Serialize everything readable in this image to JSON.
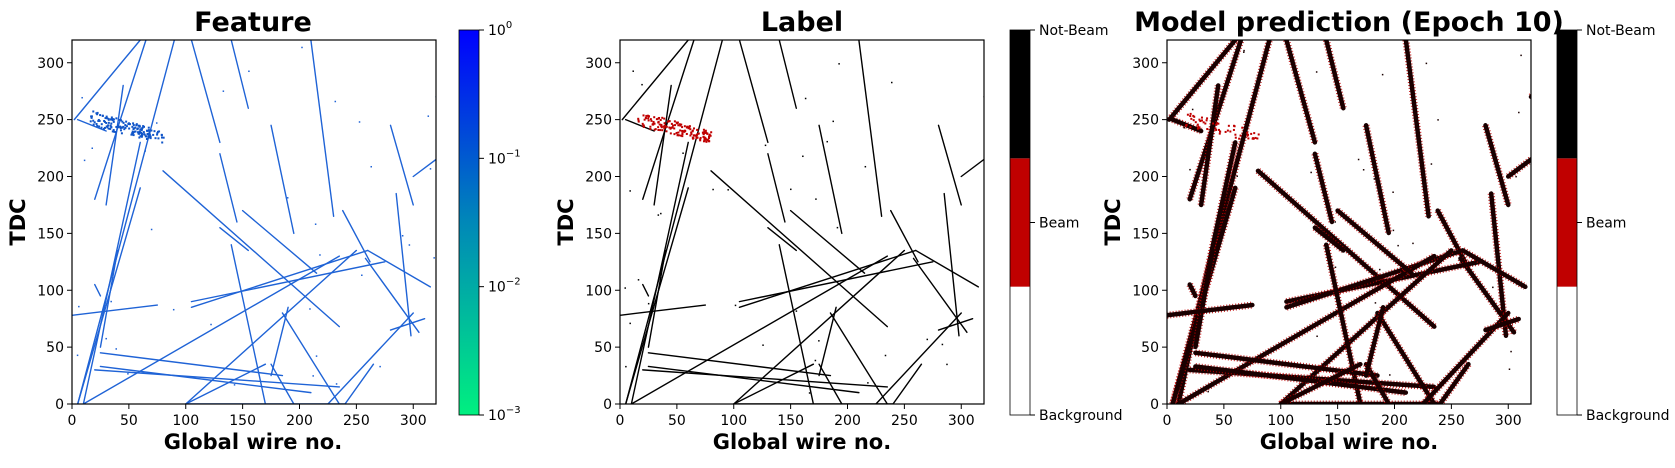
{
  "chart_data": [
    {
      "type": "heatmap",
      "title": "Feature",
      "xlabel": "Global wire no.",
      "ylabel": "TDC",
      "xlim": [
        0,
        320
      ],
      "ylim": [
        0,
        320
      ],
      "xticks": [
        "0",
        "50",
        "100",
        "150",
        "200",
        "250",
        "300"
      ],
      "yticks": [
        "0",
        "50",
        "100",
        "150",
        "200",
        "250",
        "300"
      ],
      "colorbar": {
        "scale": "log",
        "range": [
          0.001,
          1
        ],
        "ticks": [
          {
            "base": "10",
            "exp": "0",
            "value": 1
          },
          {
            "base": "10",
            "exp": "−1",
            "value": 0.1
          },
          {
            "base": "10",
            "exp": "−2",
            "value": 0.01
          },
          {
            "base": "10",
            "exp": "−3",
            "value": 0.001
          }
        ],
        "colors": [
          "#00f080",
          "#0088b8",
          "#0000ff"
        ]
      },
      "track_color": "#1f63d6",
      "beam_color": "#1055c8"
    },
    {
      "type": "heatmap",
      "title": "Label",
      "xlabel": "Global wire no.",
      "ylabel": "TDC",
      "xlim": [
        0,
        320
      ],
      "ylim": [
        0,
        320
      ],
      "xticks": [
        "0",
        "50",
        "100",
        "150",
        "200",
        "250",
        "300"
      ],
      "yticks": [
        "0",
        "50",
        "100",
        "150",
        "200",
        "250",
        "300"
      ],
      "colorbar": {
        "scale": "categorical",
        "classes": [
          "Background",
          "Beam",
          "Not-Beam"
        ],
        "colors": [
          "#ffffff",
          "#c00000",
          "#000000"
        ]
      },
      "track_color": "#000000",
      "beam_color": "#c00000"
    },
    {
      "type": "heatmap",
      "title": "Model prediction (Epoch 10)",
      "xlabel": "Global wire no.",
      "ylabel": "TDC",
      "xlim": [
        0,
        320
      ],
      "ylim": [
        0,
        320
      ],
      "xticks": [
        "0",
        "50",
        "100",
        "150",
        "200",
        "250",
        "300"
      ],
      "yticks": [
        "0",
        "50",
        "100",
        "150",
        "200",
        "250",
        "300"
      ],
      "colorbar": {
        "scale": "categorical",
        "classes": [
          "Background",
          "Beam",
          "Not-Beam"
        ],
        "colors": [
          "#ffffff",
          "#c00000",
          "#000000"
        ]
      },
      "track_color": "#1a0000",
      "beam_color": "#c00000"
    }
  ],
  "tracks": [
    [
      [
        5,
        0
      ],
      [
        90,
        320
      ]
    ],
    [
      [
        10,
        0
      ],
      [
        60,
        230
      ]
    ],
    [
      [
        2,
        250
      ],
      [
        60,
        320
      ]
    ],
    [
      [
        20,
        180
      ],
      [
        65,
        320
      ]
    ],
    [
      [
        30,
        175
      ],
      [
        45,
        280
      ]
    ],
    [
      [
        105,
        320
      ],
      [
        130,
        230
      ]
    ],
    [
      [
        140,
        320
      ],
      [
        155,
        260
      ]
    ],
    [
      [
        210,
        320
      ],
      [
        230,
        165
      ]
    ],
    [
      [
        130,
        220
      ],
      [
        145,
        160
      ]
    ],
    [
      [
        365,
        320
      ],
      [
        320,
        270
      ]
    ],
    [
      [
        280,
        245
      ],
      [
        300,
        175
      ]
    ],
    [
      [
        300,
        200
      ],
      [
        320,
        215
      ]
    ],
    [
      [
        285,
        185
      ],
      [
        298,
        60
      ]
    ],
    [
      [
        238,
        170
      ],
      [
        262,
        125
      ]
    ],
    [
      [
        175,
        245
      ],
      [
        195,
        150
      ]
    ],
    [
      [
        258,
        128
      ],
      [
        305,
        63
      ]
    ],
    [
      [
        80,
        205
      ],
      [
        235,
        68
      ]
    ],
    [
      [
        60,
        190
      ],
      [
        5,
        0
      ]
    ],
    [
      [
        40,
        135
      ],
      [
        25,
        50
      ]
    ],
    [
      [
        0,
        78
      ],
      [
        75,
        87
      ]
    ],
    [
      [
        105,
        90
      ],
      [
        275,
        125
      ]
    ],
    [
      [
        105,
        85
      ],
      [
        260,
        135
      ]
    ],
    [
      [
        260,
        135
      ],
      [
        315,
        103
      ]
    ],
    [
      [
        10,
        0
      ],
      [
        235,
        130
      ]
    ],
    [
      [
        100,
        0
      ],
      [
        250,
        135
      ]
    ],
    [
      [
        140,
        140
      ],
      [
        170,
        0
      ]
    ],
    [
      [
        150,
        170
      ],
      [
        215,
        115
      ]
    ],
    [
      [
        130,
        155
      ],
      [
        155,
        135
      ]
    ],
    [
      [
        100,
        0
      ],
      [
        240,
        0
      ]
    ],
    [
      [
        25,
        45
      ],
      [
        185,
        25
      ]
    ],
    [
      [
        20,
        30
      ],
      [
        235,
        15
      ]
    ],
    [
      [
        25,
        33
      ],
      [
        210,
        10
      ]
    ],
    [
      [
        100,
        0
      ],
      [
        170,
        35
      ]
    ],
    [
      [
        175,
        35
      ],
      [
        195,
        0
      ]
    ],
    [
      [
        185,
        80
      ],
      [
        235,
        0
      ]
    ],
    [
      [
        225,
        0
      ],
      [
        300,
        80
      ]
    ],
    [
      [
        280,
        65
      ],
      [
        310,
        75
      ]
    ],
    [
      [
        175,
        25
      ],
      [
        190,
        85
      ]
    ],
    [
      [
        240,
        0
      ],
      [
        265,
        35
      ]
    ],
    [
      [
        5,
        250
      ],
      [
        30,
        240
      ]
    ],
    [
      [
        20,
        105
      ],
      [
        25,
        95
      ]
    ]
  ],
  "beam_region": [
    [
      15,
      252
    ],
    [
      80,
      235
    ]
  ]
}
